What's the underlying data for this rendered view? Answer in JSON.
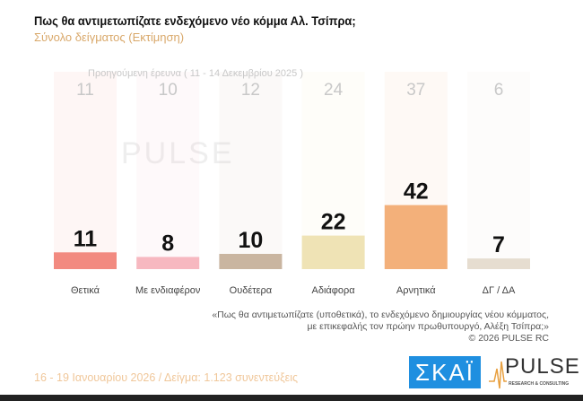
{
  "title": "Πως θα αντιμετωπίζατε ενδεχόμενο νέο κόμμα Αλ. Τσίπρα;",
  "subtitle": "Σύνολο δείγματος  (Εκτίμηση)",
  "chart_data": {
    "type": "bar",
    "categories": [
      "Θετικά",
      "Με ενδιαφέρον",
      "Ουδέτερα",
      "Αδιάφορα",
      "Αρνητικά",
      "ΔΓ / ΔΑ"
    ],
    "series": [
      {
        "name": "Προηγούμενη έρευνα ( 11 - 14 Δεκεμβρίου 2025 )",
        "values": [
          11,
          10,
          12,
          24,
          37,
          6
        ]
      },
      {
        "values": [
          11,
          8,
          10,
          22,
          42,
          7
        ]
      }
    ],
    "colors": [
      "#f28a80",
      "#f7b8c0",
      "#c9b5a0",
      "#efe3b5",
      "#f3b07a",
      "#e6ddd0"
    ]
  },
  "watermark": "PULSE RESEARCH & CONSULTING",
  "note": [
    "«Πως θα αντιμετωπίζατε (υποθετικά), το ενδεχόμενο δημιουργίας νέου κόμματος,",
    "με επικεφαλής τον πρώην πρωθυπουργό, Αλέξη Τσίπρα;»",
    "©  2026  PULSE RC"
  ],
  "footer": "16 - 19 Ιανουαρίου 2026  /  Δείγμα:  1.123 συνεντεύξεις",
  "logos": {
    "skai": "ΣΚΑΪ",
    "pulse": "PULSE",
    "pulse_sub": "RESEARCH & CONSULTING"
  }
}
